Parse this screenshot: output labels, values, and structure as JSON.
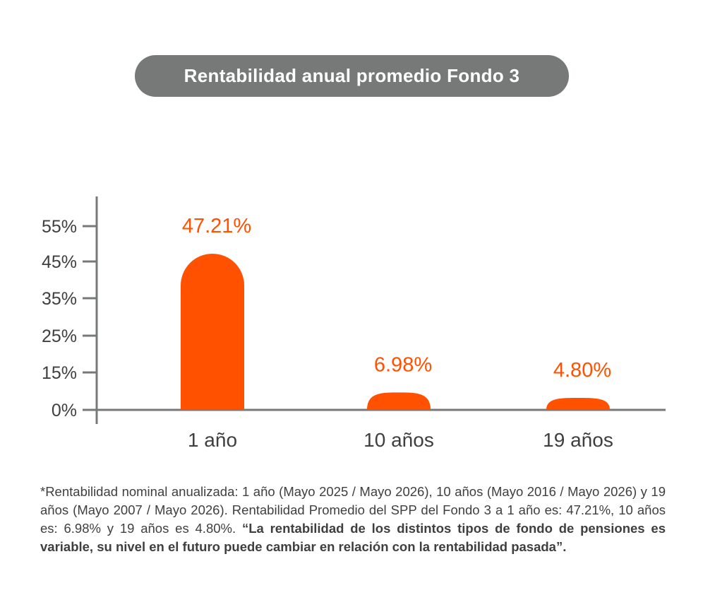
{
  "chart_data": {
    "type": "bar",
    "title": "Rentabilidad anual promedio Fondo 3",
    "categories": [
      "1 año",
      "10 años",
      "19 años"
    ],
    "values": [
      47.21,
      6.98,
      4.8
    ],
    "value_labels": [
      "47.21%",
      "6.98%",
      "4.80%"
    ],
    "y_ticks": [
      0,
      15,
      25,
      35,
      45,
      55
    ],
    "y_tick_labels": [
      "0%",
      "15%",
      "25%",
      "35%",
      "45%",
      "55%"
    ],
    "ylim": [
      0,
      60
    ],
    "xlabel": "",
    "ylabel": "",
    "grid": false,
    "colors": {
      "bar": "#ff5100",
      "label": "#ff5100",
      "axis": "#777878",
      "title_bg": "#777878"
    }
  },
  "footnote": {
    "normal": "*Rentabilidad nominal anualizada: 1 año (Mayo 2025 / Mayo 2026), 10 años (Mayo 2016 / Mayo 2026) y 19 años (Mayo 2007 / Mayo 2026). Rentabilidad Promedio del SPP del Fondo 3 a 1 año es: 47.21%, 10 años es: 6.98% y 19 años es 4.80%. ",
    "bold": "“La rentabilidad de los distintos tipos de fondo de pensiones es variable, su nivel en el futuro puede cambiar en relación con la rentabilidad pasada”."
  }
}
